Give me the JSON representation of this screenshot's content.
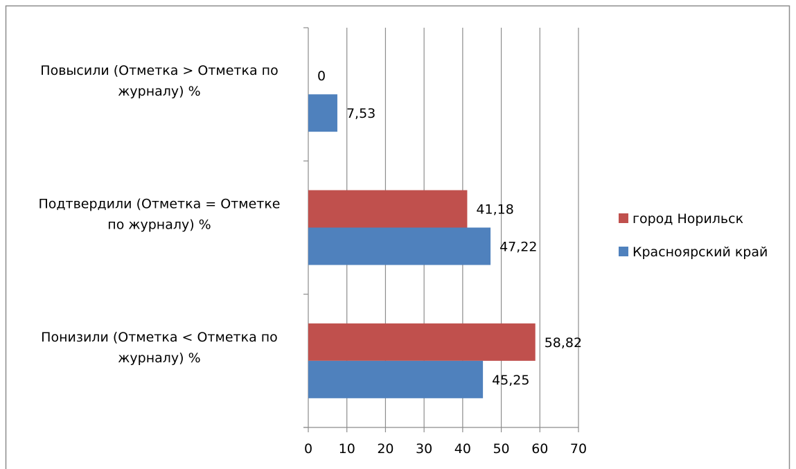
{
  "chart_data": {
    "type": "bar",
    "orientation": "horizontal",
    "categories": [
      [
        "Повысили (Отметка > Отметка по",
        "журналу) %"
      ],
      [
        "Подтвердили (Отметка = Отметке",
        "по журналу) %"
      ],
      [
        "Понизили (Отметка < Отметка по",
        "журналу) %"
      ]
    ],
    "series": [
      {
        "name": "город Норильск",
        "color": "#C0504D",
        "values": [
          0,
          41.18,
          58.82
        ],
        "labels": [
          "0",
          "41,18",
          "58,82"
        ]
      },
      {
        "name": "Красноярский край",
        "color": "#4F81BD",
        "values": [
          7.53,
          47.22,
          45.25
        ],
        "labels": [
          "7,53",
          "47,22",
          "45,25"
        ]
      }
    ],
    "xlim": [
      0,
      70
    ],
    "ticks": [
      "0",
      "10",
      "20",
      "30",
      "40",
      "50",
      "60",
      "70"
    ],
    "grid": true,
    "legend_position": "right",
    "title": "",
    "xlabel": "",
    "ylabel": ""
  }
}
